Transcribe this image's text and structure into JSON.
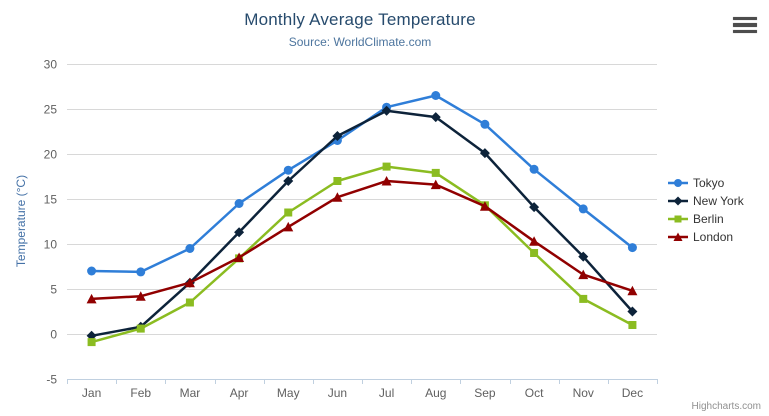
{
  "chart": {
    "title": "Monthly Average Temperature",
    "subtitle": "Source: WorldClimate.com",
    "credits": "Highcharts.com",
    "icons": {
      "menu": "hamburger-menu-icon"
    }
  },
  "chart_data": {
    "type": "line",
    "title": "Monthly Average Temperature",
    "subtitle": "Source: WorldClimate.com",
    "categories": [
      "Jan",
      "Feb",
      "Mar",
      "Apr",
      "May",
      "Jun",
      "Jul",
      "Aug",
      "Sep",
      "Oct",
      "Nov",
      "Dec"
    ],
    "series": [
      {
        "name": "Tokyo",
        "color": "#2f7ed8",
        "marker": "circle",
        "values": [
          7.0,
          6.9,
          9.5,
          14.5,
          18.2,
          21.5,
          25.2,
          26.5,
          23.3,
          18.3,
          13.9,
          9.6
        ]
      },
      {
        "name": "New York",
        "color": "#0d233a",
        "marker": "diamond",
        "values": [
          -0.2,
          0.8,
          5.7,
          11.3,
          17.0,
          22.0,
          24.8,
          24.1,
          20.1,
          14.1,
          8.6,
          2.5
        ]
      },
      {
        "name": "Berlin",
        "color": "#8bbc21",
        "marker": "square",
        "values": [
          -0.9,
          0.6,
          3.5,
          8.4,
          13.5,
          17.0,
          18.6,
          17.9,
          14.3,
          9.0,
          3.9,
          1.0
        ]
      },
      {
        "name": "London",
        "color": "#910000",
        "marker": "triangle",
        "values": [
          3.9,
          4.2,
          5.7,
          8.5,
          11.9,
          15.2,
          17.0,
          16.6,
          14.2,
          10.3,
          6.6,
          4.8
        ]
      }
    ],
    "xlabel": "",
    "ylabel": "Temperature (°C)",
    "ylim": [
      -5,
      30
    ],
    "ytick_step": 5,
    "grid": true,
    "legend_position": "right",
    "colors": {
      "grid_line": "#d8d8d8",
      "axis_line": "#c0d0e0",
      "tick_label": "#606060",
      "title": "#274b6d",
      "subtitle": "#4d759e",
      "y_axis_title": "#4572a7",
      "legend_text": "#333333"
    }
  }
}
